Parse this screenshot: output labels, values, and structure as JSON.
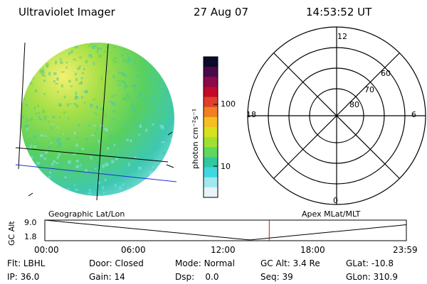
{
  "header": {
    "instrument": "Ultraviolet Imager",
    "date": "27 Aug 07",
    "time": "14:53:52 UT"
  },
  "colorbar": {
    "unit_label": "photon cm⁻²s⁻¹",
    "ticks": [
      "100",
      "10"
    ],
    "colors": [
      "#0a0a2a",
      "#4a0a4a",
      "#8a0a4a",
      "#c40a2a",
      "#e0402a",
      "#f08020",
      "#f4c020",
      "#d8e020",
      "#a0e030",
      "#60d860",
      "#30c8a0",
      "#40d8e0",
      "#a0e8f0",
      "#e8f4f8"
    ]
  },
  "globe": {
    "label": "Geographic Lat/Lon",
    "colors": {
      "bright": "#f4f070",
      "mid": "#a8e048",
      "green": "#58d060",
      "teal": "#3ec8b0",
      "cyan": "#8ee4ec"
    }
  },
  "polar": {
    "label": "Apex MLat/MLT",
    "mlt_labels": {
      "top": "12",
      "left": "18",
      "right": "6",
      "bottom": "0"
    },
    "lat_labels": [
      "60",
      "70",
      "80"
    ]
  },
  "altitude_plot": {
    "ylabel": "GC Alt",
    "y_ticks": [
      "9.0",
      "1.8"
    ],
    "x_ticks": [
      "00:00",
      "06:00",
      "12:00",
      "18:00",
      "23:59"
    ],
    "marker_time": "14:53:52",
    "marker_color": "#d01010"
  },
  "footer": {
    "row1": [
      {
        "key": "Flt:",
        "value": "LBHL"
      },
      {
        "key": "Door:",
        "value": "Closed"
      },
      {
        "key": "Mode:",
        "value": "Normal"
      },
      {
        "key": "GC Alt:",
        "value": "3.4 Re"
      },
      {
        "key": "GLat:",
        "value": "-10.8"
      }
    ],
    "row2": [
      {
        "key": "IP:",
        "value": "36.0"
      },
      {
        "key": "Gain:",
        "value": "14"
      },
      {
        "key": "Dsp:",
        "value": "0.0"
      },
      {
        "key": "Seq:",
        "value": "39"
      },
      {
        "key": "GLon:",
        "value": "310.9"
      }
    ]
  }
}
